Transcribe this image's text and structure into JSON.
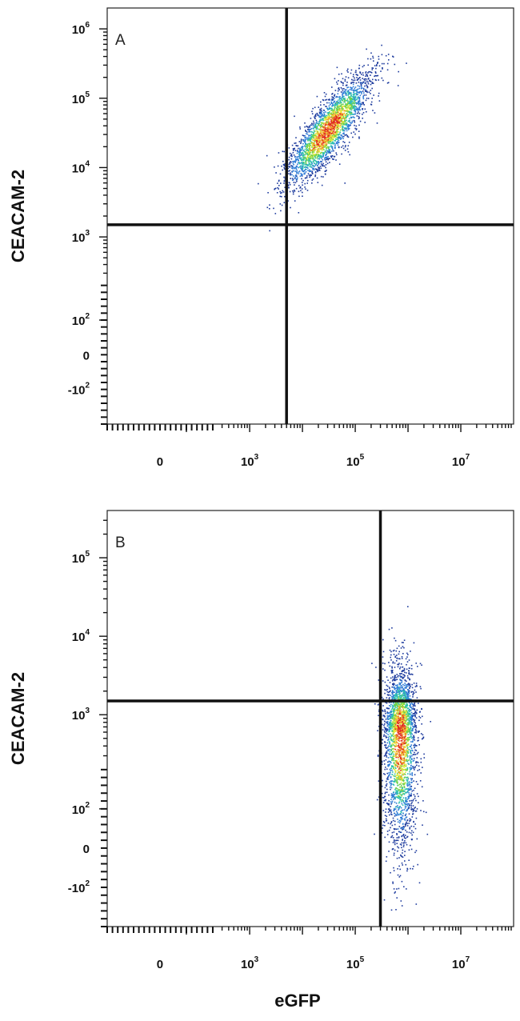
{
  "figure": {
    "x_axis_label": "eGFP"
  },
  "chart_data": [
    {
      "type": "scatter",
      "panel_label": "A",
      "xlabel": "",
      "ylabel": "CEACAM-2",
      "x_scale": "biexponential",
      "y_scale": "biexponential",
      "xlim": [
        -200,
        100000000
      ],
      "ylim": [
        -200,
        2000000
      ],
      "x_ticks": [
        {
          "value": 0,
          "base": "0",
          "exp": ""
        },
        {
          "value": 1000,
          "base": "10",
          "exp": "3"
        },
        {
          "value": 100000,
          "base": "10",
          "exp": "5"
        },
        {
          "value": 10000000,
          "base": "10",
          "exp": "7"
        }
      ],
      "y_ticks": [
        {
          "value": -100,
          "base": "-10",
          "exp": "2"
        },
        {
          "value": 0,
          "base": "0",
          "exp": ""
        },
        {
          "value": 100,
          "base": "10",
          "exp": "2"
        },
        {
          "value": 1000,
          "base": "10",
          "exp": "3"
        },
        {
          "value": 10000,
          "base": "10",
          "exp": "4"
        },
        {
          "value": 100000,
          "base": "10",
          "exp": "5"
        },
        {
          "value": 1000000,
          "base": "10",
          "exp": "6"
        }
      ],
      "quadrant_gate": {
        "x": 5000,
        "y": 1500
      },
      "populations": [
        {
          "center": [
            30000,
            35000
          ],
          "spread": "log-normal, diagonal",
          "density": "high"
        }
      ],
      "colormap": [
        "#1f3c9e",
        "#2d7bd6",
        "#2bbfb0",
        "#6fd34a",
        "#e8e83a",
        "#f29a2a",
        "#e02a1e"
      ],
      "gridlines": false
    },
    {
      "type": "scatter",
      "panel_label": "B",
      "xlabel": "eGFP",
      "ylabel": "CEACAM-2",
      "x_scale": "biexponential",
      "y_scale": "biexponential",
      "xlim": [
        -200,
        100000000
      ],
      "ylim": [
        -200,
        400000
      ],
      "x_ticks": [
        {
          "value": 0,
          "base": "0",
          "exp": ""
        },
        {
          "value": 1000,
          "base": "10",
          "exp": "3"
        },
        {
          "value": 100000,
          "base": "10",
          "exp": "5"
        },
        {
          "value": 10000000,
          "base": "10",
          "exp": "7"
        }
      ],
      "y_ticks": [
        {
          "value": -100,
          "base": "-10",
          "exp": "2"
        },
        {
          "value": 0,
          "base": "0",
          "exp": ""
        },
        {
          "value": 100,
          "base": "10",
          "exp": "2"
        },
        {
          "value": 1000,
          "base": "10",
          "exp": "3"
        },
        {
          "value": 10000,
          "base": "10",
          "exp": "4"
        },
        {
          "value": 100000,
          "base": "10",
          "exp": "5"
        }
      ],
      "quadrant_gate": {
        "x": 300000,
        "y": 1500
      },
      "populations": [
        {
          "center": [
            700000,
            600
          ],
          "spread": "vertical elongated",
          "density": "high"
        }
      ],
      "colormap": [
        "#1f3c9e",
        "#2d7bd6",
        "#2bbfb0",
        "#6fd34a",
        "#e8e83a",
        "#f29a2a",
        "#e02a1e"
      ],
      "gridlines": false
    }
  ]
}
